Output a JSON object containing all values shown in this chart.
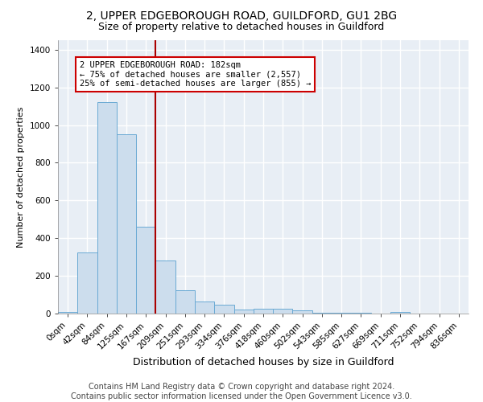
{
  "title1": "2, UPPER EDGEBOROUGH ROAD, GUILDFORD, GU1 2BG",
  "title2": "Size of property relative to detached houses in Guildford",
  "xlabel": "Distribution of detached houses by size in Guildford",
  "ylabel": "Number of detached properties",
  "categories": [
    "0sqm",
    "42sqm",
    "84sqm",
    "125sqm",
    "167sqm",
    "209sqm",
    "251sqm",
    "293sqm",
    "334sqm",
    "376sqm",
    "418sqm",
    "460sqm",
    "502sqm",
    "543sqm",
    "585sqm",
    "627sqm",
    "669sqm",
    "711sqm",
    "752sqm",
    "794sqm",
    "836sqm"
  ],
  "values": [
    10,
    325,
    1120,
    950,
    460,
    280,
    125,
    65,
    45,
    22,
    25,
    25,
    15,
    5,
    4,
    5,
    2,
    10,
    0,
    0,
    0
  ],
  "bar_color": "#ccdded",
  "bar_edge_color": "#6aaad4",
  "bar_width": 1.0,
  "red_line_x": 4.5,
  "annotation_text": "2 UPPER EDGEBOROUGH ROAD: 182sqm\n← 75% of detached houses are smaller (2,557)\n25% of semi-detached houses are larger (855) →",
  "annotation_box_color": "white",
  "annotation_box_edge": "#cc0000",
  "ylim": [
    0,
    1450
  ],
  "yticks": [
    0,
    200,
    400,
    600,
    800,
    1000,
    1200,
    1400
  ],
  "background_color": "#e8eef5",
  "grid_color": "white",
  "footer": "Contains HM Land Registry data © Crown copyright and database right 2024.\nContains public sector information licensed under the Open Government Licence v3.0.",
  "title1_fontsize": 10,
  "title2_fontsize": 9,
  "xlabel_fontsize": 9,
  "ylabel_fontsize": 8,
  "tick_fontsize": 7.5,
  "footer_fontsize": 7,
  "annot_fontsize": 7.5
}
